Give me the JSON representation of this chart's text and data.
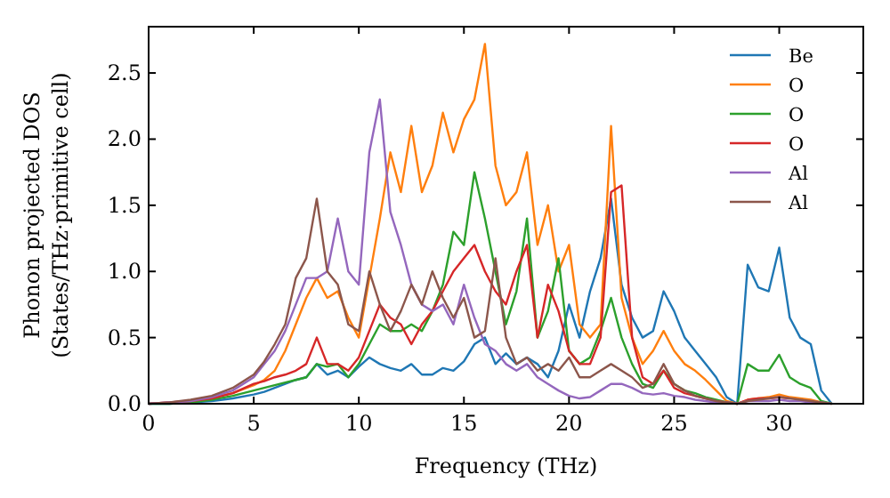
{
  "chart_data": {
    "type": "line",
    "xlabel": "Frequency (THz)",
    "ylabel": "Phonon projected DOS\n(States/THz·primitive cell)",
    "x": [
      0,
      1,
      2,
      3,
      4,
      5,
      5.5,
      6,
      6.5,
      7,
      7.5,
      8,
      8.5,
      9,
      9.5,
      10,
      10.5,
      11,
      11.5,
      12,
      12.5,
      13,
      13.5,
      14,
      14.5,
      15,
      15.5,
      16,
      16.5,
      17,
      17.5,
      18,
      18.5,
      19,
      19.5,
      20,
      20.5,
      21,
      21.5,
      22,
      22.5,
      23,
      23.5,
      24,
      24.5,
      25,
      25.5,
      26,
      26.5,
      27,
      27.5,
      28,
      28.5,
      29,
      29.5,
      30,
      30.5,
      31,
      31.5,
      32,
      32.5
    ],
    "series": [
      {
        "name": "Be",
        "color": "#1f77b4",
        "values": [
          0,
          0,
          0.01,
          0.02,
          0.04,
          0.07,
          0.09,
          0.12,
          0.15,
          0.18,
          0.2,
          0.3,
          0.22,
          0.25,
          0.2,
          0.28,
          0.35,
          0.3,
          0.27,
          0.25,
          0.3,
          0.22,
          0.22,
          0.27,
          0.25,
          0.32,
          0.45,
          0.5,
          0.3,
          0.38,
          0.3,
          0.35,
          0.3,
          0.2,
          0.4,
          0.75,
          0.5,
          0.85,
          1.1,
          1.55,
          0.9,
          0.65,
          0.5,
          0.55,
          0.85,
          0.7,
          0.5,
          0.4,
          0.3,
          0.2,
          0.05,
          0,
          1.05,
          0.88,
          0.85,
          1.18,
          0.65,
          0.5,
          0.45,
          0.1,
          0
        ]
      },
      {
        "name": "O",
        "color": "#ff7f0e",
        "values": [
          null,
          null,
          null,
          0.05,
          0.08,
          0.14,
          0.18,
          0.25,
          0.4,
          0.6,
          0.8,
          0.95,
          0.8,
          0.85,
          0.65,
          0.5,
          0.95,
          1.4,
          1.9,
          1.6,
          2.1,
          1.6,
          1.8,
          2.2,
          1.9,
          2.15,
          2.3,
          2.72,
          1.8,
          1.5,
          1.6,
          1.9,
          1.2,
          1.5,
          1.0,
          1.2,
          0.6,
          0.5,
          0.6,
          2.1,
          0.8,
          0.5,
          0.3,
          0.4,
          0.55,
          0.4,
          0.3,
          0.25,
          0.18,
          0.1,
          0.02,
          0,
          0.03,
          0.04,
          0.05,
          0.07,
          0.05,
          0.04,
          0.03,
          0.01,
          0
        ]
      },
      {
        "name": "O",
        "color": "#2ca02c",
        "values": [
          0,
          0,
          0.01,
          0.03,
          0.06,
          0.1,
          0.12,
          0.14,
          0.16,
          0.18,
          0.2,
          0.3,
          0.28,
          0.3,
          0.2,
          0.3,
          0.45,
          0.6,
          0.55,
          0.55,
          0.6,
          0.55,
          0.7,
          0.9,
          1.3,
          1.2,
          1.75,
          1.4,
          1.0,
          0.6,
          0.85,
          1.4,
          0.5,
          0.7,
          1.1,
          0.4,
          0.3,
          0.35,
          0.55,
          0.8,
          0.5,
          0.3,
          0.15,
          0.12,
          0.25,
          0.15,
          0.1,
          0.08,
          0.05,
          0.03,
          0.01,
          0,
          0.3,
          0.25,
          0.25,
          0.37,
          0.2,
          0.15,
          0.12,
          0.02,
          0
        ]
      },
      {
        "name": "O",
        "color": "#d62728",
        "values": [
          0,
          0.01,
          0.02,
          0.04,
          0.08,
          0.15,
          0.17,
          0.2,
          0.22,
          0.25,
          0.3,
          0.5,
          0.3,
          0.3,
          0.25,
          0.35,
          0.55,
          0.75,
          0.65,
          0.6,
          0.45,
          0.6,
          0.7,
          0.85,
          1.0,
          1.1,
          1.2,
          1.0,
          0.85,
          0.75,
          1.0,
          1.2,
          0.5,
          0.9,
          0.7,
          0.4,
          0.3,
          0.3,
          0.5,
          1.6,
          1.65,
          0.5,
          0.2,
          0.15,
          0.25,
          0.12,
          0.08,
          0.06,
          0.04,
          0.02,
          0.01,
          0,
          0.03,
          0.04,
          0.04,
          0.05,
          0.04,
          null,
          null,
          null,
          null
        ]
      },
      {
        "name": "Al",
        "color": "#9467bd",
        "values": [
          0,
          0.01,
          0.02,
          0.05,
          0.1,
          0.2,
          0.3,
          0.4,
          0.55,
          0.75,
          0.95,
          0.95,
          1.0,
          1.4,
          1.0,
          0.9,
          1.9,
          2.3,
          1.45,
          1.2,
          0.9,
          0.75,
          0.7,
          0.75,
          0.6,
          0.9,
          0.65,
          0.45,
          0.4,
          0.3,
          0.25,
          0.3,
          0.2,
          0.15,
          0.1,
          0.06,
          0.04,
          0.05,
          0.1,
          0.15,
          0.15,
          0.12,
          0.08,
          0.07,
          0.08,
          0.06,
          0.05,
          0.03,
          0.02,
          0.01,
          0.01,
          0,
          0.02,
          0.02,
          0.02,
          0.03,
          0.02,
          0.02,
          0.01,
          0.01,
          0
        ]
      },
      {
        "name": "Al",
        "color": "#8c564b",
        "values": [
          0,
          0.01,
          0.03,
          0.06,
          0.12,
          0.22,
          0.32,
          0.45,
          0.6,
          0.95,
          1.1,
          1.55,
          1.0,
          0.9,
          0.6,
          0.55,
          1.0,
          0.75,
          0.55,
          0.7,
          0.9,
          0.75,
          1.0,
          0.8,
          0.65,
          0.8,
          0.5,
          0.55,
          1.1,
          0.5,
          0.3,
          0.35,
          0.25,
          0.3,
          0.25,
          0.35,
          0.2,
          0.2,
          0.25,
          0.3,
          0.25,
          0.2,
          0.12,
          0.15,
          0.3,
          0.15,
          0.1,
          0.06,
          0.04,
          0.02,
          0.01,
          0,
          0.02,
          0.03,
          0.04,
          0.05,
          0.04,
          0.03,
          0.02,
          0.01,
          0
        ]
      }
    ],
    "xlim": [
      0,
      34
    ],
    "xticks": [
      0,
      5,
      10,
      15,
      20,
      25,
      30
    ],
    "ylim": [
      0,
      2.85
    ],
    "yticks": [
      {
        "value": 0,
        "label": "0.0"
      },
      {
        "value": 0.5,
        "label": "0.5"
      },
      {
        "value": 1,
        "label": "1.0"
      },
      {
        "value": 1.5,
        "label": "1.5"
      },
      {
        "value": 2,
        "label": "2.0"
      },
      {
        "value": 2.5,
        "label": "2.5"
      }
    ],
    "legend": "top right",
    "grid": false,
    "line_style": "solid",
    "marker": "none"
  }
}
